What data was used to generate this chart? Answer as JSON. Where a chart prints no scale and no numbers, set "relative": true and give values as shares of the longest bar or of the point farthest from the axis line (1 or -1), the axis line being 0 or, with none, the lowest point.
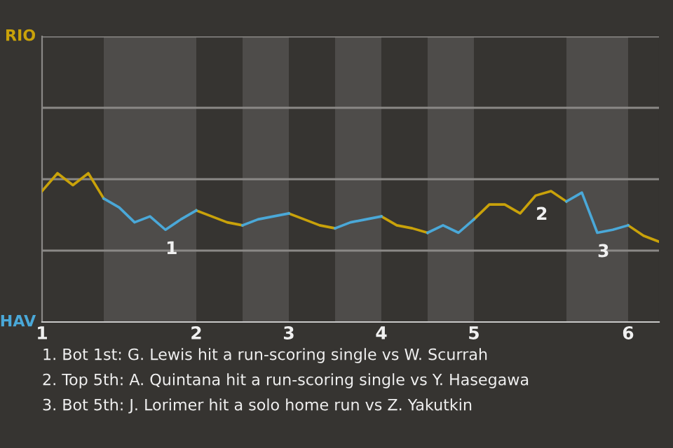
{
  "chart_data": {
    "type": "line",
    "categories": [
      "1",
      null,
      null,
      null,
      null,
      null,
      null,
      null,
      null,
      null,
      "2",
      null,
      null,
      null,
      null,
      null,
      "3",
      null,
      null,
      null,
      null,
      null,
      "4",
      null,
      null,
      null,
      null,
      null,
      "5",
      null,
      null,
      null,
      null,
      null,
      null,
      null,
      null,
      null,
      "6",
      null,
      null
    ],
    "relative": true,
    "series": [
      {
        "color": "#c9a20a",
        "values": [
          0.88,
          1,
          0.92,
          1,
          0.83,
          null,
          null,
          null,
          null,
          null,
          0.75,
          0.71,
          0.67,
          0.65,
          null,
          null,
          0.73,
          0.69,
          0.65,
          0.63,
          null,
          null,
          0.71,
          0.65,
          0.63,
          0.6,
          null,
          null,
          0.69,
          0.79,
          0.79,
          0.73,
          0.85,
          0.88,
          0.81,
          null,
          null,
          null,
          0.65,
          0.58,
          0.54
        ]
      },
      {
        "color": "#4aa8d8",
        "values": [
          null,
          null,
          null,
          null,
          0.83,
          0.77,
          0.67,
          0.71,
          0.62,
          0.69,
          0.75,
          null,
          null,
          0.65,
          0.69,
          0.71,
          0.73,
          null,
          null,
          0.63,
          0.67,
          0.69,
          0.71,
          null,
          null,
          0.6,
          0.65,
          0.6,
          0.69,
          null,
          null,
          null,
          null,
          null,
          0.81,
          0.87,
          0.6,
          0.62,
          0.65,
          null,
          null
        ]
      }
    ],
    "ref_lines": [
      {
        "axis": "y",
        "value": 0.48,
        "color": "#8a8886"
      },
      {
        "axis": "y",
        "value": 0.96,
        "color": "#8a8886"
      },
      {
        "axis": "y",
        "value": 1.44,
        "color": "#8a8886"
      },
      {
        "axis": "y",
        "value": 1.92,
        "color": "#8a8886"
      }
    ],
    "annotations": [
      "RIO",
      "HAV",
      {
        "text": "1",
        "y": 0.62
      },
      {
        "text": "2",
        "y": 0.85
      },
      {
        "text": "3",
        "y": 0.6
      },
      "1. Bot 1st: G. Lewis hit a run-scoring single vs W. Scurrah",
      "2. Top 5th: A. Quintana hit a run-scoring single vs Y. Hasegawa",
      "3. Bot 5th: J. Lorimer hit a solo home run vs Z. Yakutkin"
    ]
  }
}
